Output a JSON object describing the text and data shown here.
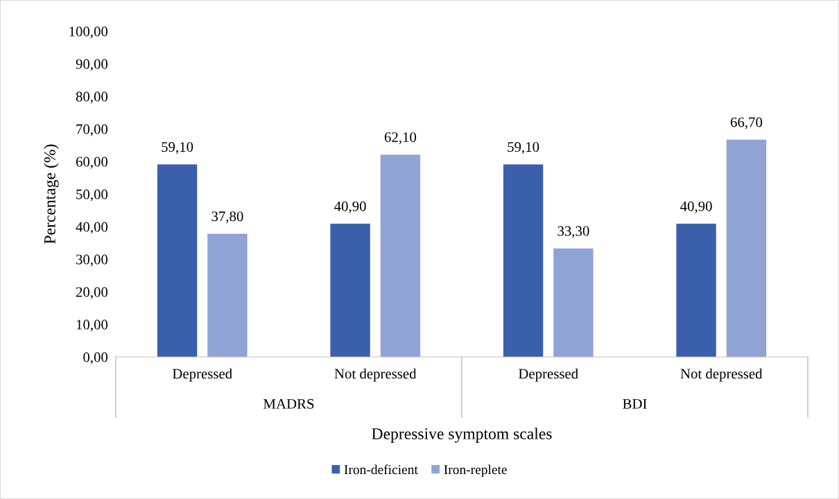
{
  "chart_data": {
    "type": "bar",
    "xlabel": "Depressive symptom scales",
    "ylabel": "Percentage (%)",
    "categories": [
      "Depressed",
      "Not depressed",
      "Depressed",
      "Not depressed"
    ],
    "annotations": [
      "MADRS",
      "BDI"
    ],
    "series": [
      {
        "name": "Iron-deficient",
        "color": "#3a5fab",
        "values": [
          59.1,
          40.9,
          59.1,
          40.9
        ],
        "value_labels": [
          "59,10",
          "40,90",
          "59,10",
          "40,90"
        ]
      },
      {
        "name": "Iron-replete",
        "color": "#8fa3d5",
        "values": [
          37.8,
          62.1,
          33.3,
          66.7
        ],
        "value_labels": [
          "37,80",
          "62,10",
          "33,30",
          "66,70"
        ]
      }
    ],
    "ylim": [
      0,
      100
    ],
    "yticks": [
      {
        "value": 0,
        "label": "0,00"
      },
      {
        "value": 10,
        "label": "10,00"
      },
      {
        "value": 20,
        "label": "20,00"
      },
      {
        "value": 30,
        "label": "30,00"
      },
      {
        "value": 40,
        "label": "40,00"
      },
      {
        "value": 50,
        "label": "50,00"
      },
      {
        "value": 60,
        "label": "60,00"
      },
      {
        "value": 70,
        "label": "70,00"
      },
      {
        "value": 80,
        "label": "80,00"
      },
      {
        "value": 90,
        "label": "90,00"
      },
      {
        "value": 100,
        "label": "100,00"
      }
    ],
    "grid": false,
    "legend": "bottom"
  }
}
